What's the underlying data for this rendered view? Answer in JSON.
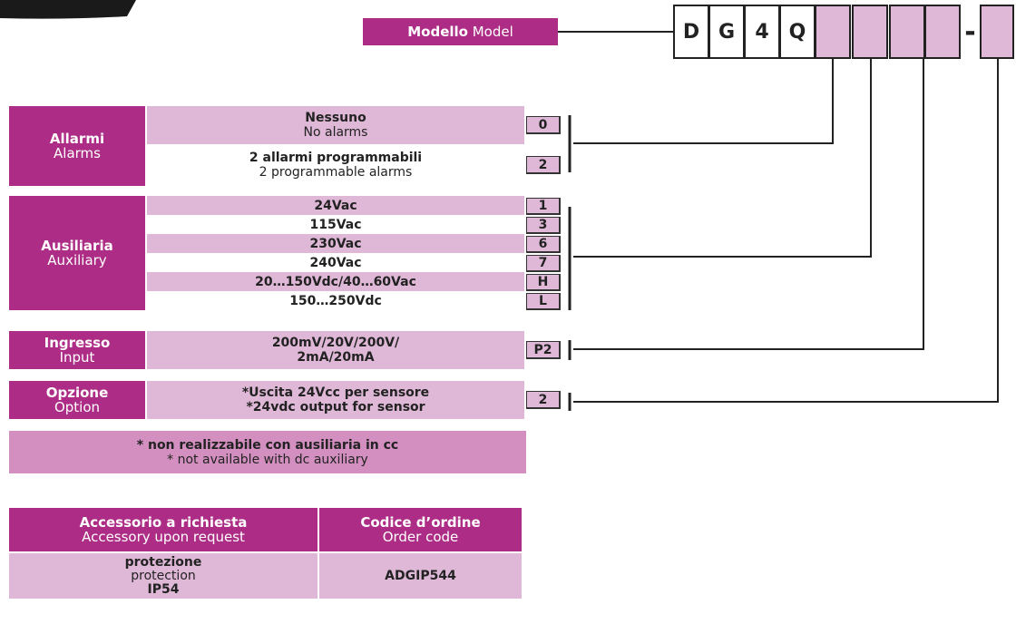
{
  "model": {
    "label_it": "Modello",
    "label_en": "Model",
    "code": [
      "D",
      "G",
      "4",
      "Q"
    ],
    "separator": "-"
  },
  "sections": [
    {
      "label_it": "Allarmi",
      "label_en": "Alarms",
      "options": [
        {
          "lines": [
            "Nessuno",
            "No alarms"
          ],
          "code": "0"
        },
        {
          "lines": [
            "2 allarmi programmabili",
            "2 programmable alarms"
          ],
          "code": "2"
        }
      ]
    },
    {
      "label_it": "Ausiliaria",
      "label_en": "Auxiliary",
      "options": [
        {
          "lines": [
            "24Vac"
          ],
          "code": "1"
        },
        {
          "lines": [
            "115Vac"
          ],
          "code": "3"
        },
        {
          "lines": [
            "230Vac"
          ],
          "code": "6"
        },
        {
          "lines": [
            "240Vac"
          ],
          "code": "7"
        },
        {
          "lines": [
            "20…150Vdc/40…60Vac"
          ],
          "code": "H"
        },
        {
          "lines": [
            "150…250Vdc"
          ],
          "code": "L"
        }
      ]
    },
    {
      "label_it": "Ingresso",
      "label_en": "Input",
      "options": [
        {
          "lines": [
            "200mV/20V/200V/",
            "2mA/20mA"
          ],
          "code": "P2"
        }
      ]
    },
    {
      "label_it": "Opzione",
      "label_en": "Option",
      "options": [
        {
          "lines": [
            "*Uscita 24Vcc per sensore",
            "*24vdc output for sensor"
          ],
          "code": "2"
        }
      ]
    }
  ],
  "note": {
    "it": "* non realizzabile con ausiliaria in cc",
    "en": "* not available with dc auxiliary"
  },
  "accessory_table": {
    "headers": [
      [
        "Accessorio a richiesta",
        "Accessory upon request"
      ],
      [
        "Codice d’ordine",
        "Order code"
      ]
    ],
    "rows": [
      [
        [
          "protezione",
          "protection",
          "IP54"
        ],
        "ADGIP544"
      ]
    ]
  }
}
